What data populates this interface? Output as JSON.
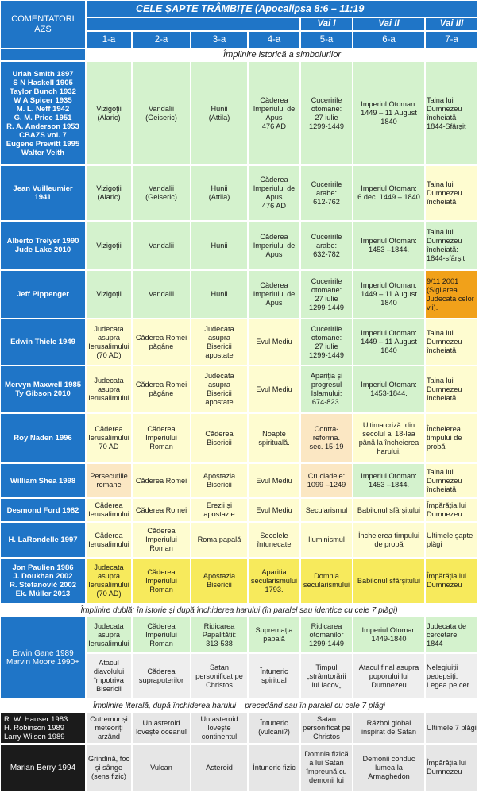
{
  "header": {
    "commentators_label": "COMENTATORI\nAZS",
    "title": "CELE ȘAPTE TRÂMBIȚE (Apocalipsa 8:6 – 11:19",
    "vai": [
      "Vai I",
      "Vai II",
      "Vai III"
    ],
    "columns": [
      "1-a",
      "2-a",
      "3-a",
      "4-a",
      "5-a",
      "6-a",
      "7-a"
    ]
  },
  "sections": {
    "historical": "Împlinire istorică a simbolurilor",
    "dual": "Împlinire dublă: în istorie și după închiderea harului  (în paralel sau identice cu cele 7 plăgi)",
    "literal": "Împlinire literală, după închiderea harului – precedând sau în paralel cu cele 7 plăgi"
  },
  "rows": [
    {
      "commentators": "Uriah Smith 1897\nS N Haskell 1905\nTaylor Bunch 1932\nW A Spicer 1935\nM. L. Neff 1942\nG. M. Price 1951\nR. A. Anderson 1953\nCBAZS vol. 7\nEugene Prewitt 1995\nWalter Veith",
      "cells": [
        "Vizigoții\n(Alaric)",
        "Vandalii\n(Geiseric)",
        "Hunii\n(Attila)",
        "Căderea\nImperiului de\nApus\n476 AD",
        "Cuceririle\notomane:\n27 iulie\n1299-1449",
        "Imperiul Otoman:\n1449 – 11 August\n1840",
        "Taina lui\nDumnezeu\nîncheiată\n1844-Sfârșit"
      ]
    },
    {
      "commentators": "Jean Vuilleumier\n1941",
      "cells": [
        "Vizigoții\n(Alaric)",
        "Vandalii\n(Geiseric)",
        "Hunii\n(Attila)",
        "Căderea\nImperiului de\nApus\n476 AD",
        "Cuceririle\narabe:\n612-762",
        "Imperiul Otoman:\n6 dec. 1449 – 1840",
        "Taina lui\nDumnezeu\nîncheiată"
      ]
    },
    {
      "commentators": "Alberto  Treiyer 1990\nJude Lake 2010",
      "cells": [
        "Vizigoții",
        "Vandalii",
        "Hunii",
        "Căderea\nImperiului de\nApus",
        "Cuceririle\narabe:\n632-782",
        "Imperiul Otoman:\n1453 –1844.",
        "Taina lui\nDumnezeu\nîncheiată:\n1844-sfârșit"
      ]
    },
    {
      "commentators": "Jeff Pippenger",
      "cells": [
        "Vizigoții",
        "Vandalii",
        "Hunii",
        "Căderea\nImperiului de\nApus",
        "Cuceririle\notomane:\n27 iulie\n1299-1449",
        "Imperiul Otoman:\n1449 – 11 August\n1840",
        "9/11 2001\n(Sigilarea.\nJudecata celor\nvii)."
      ]
    },
    {
      "commentators": "Edwin Thiele 1949",
      "cells": [
        "Judecata\nasupra\nIerusalimului\n(70 AD)",
        "Căderea Romei\npăgâne",
        "Judecata\nasupra\nBisericii\napostate",
        "Evul Mediu",
        "Cuceririle\notomane:\n27 iulie\n1299-1449",
        "Imperiul Otoman:\n1449 – 11 August\n1840",
        "Taina lui\nDumnezeu\nîncheiată"
      ]
    },
    {
      "commentators": "Mervyn Maxwell 1985\nTy Gibson 2010",
      "cells": [
        "Judecata\nasupra\nIerusalimului",
        "Căderea Romei\npăgâne",
        "Judecata\nasupra\nBisericii\napostate",
        "Evul Mediu",
        "Apariția și\nprogresul\nIslamului:\n674-823.",
        "Imperiul Otoman:\n1453-1844.",
        "Taina lui\nDumnezeu\nîncheiată"
      ]
    },
    {
      "commentators": "Roy Naden 1996",
      "cells": [
        "Căderea\nIerusalimului\n70 AD",
        "Căderea\nImperiului\nRoman",
        "Căderea\nBisericii",
        "Noapte\nspirituală.",
        "Contra-\nreforma.\nsec. 15-19",
        "Ultima criză: din\nsecolul al 18-lea\npână la încheierea\nharului.",
        "Încheierea\ntimpului de\nprobă"
      ]
    },
    {
      "commentators": "William Shea 1998",
      "cells": [
        "Persecuțiile\nromane",
        "Căderea Romei",
        "Apostazia\nBisericii",
        "Evul Mediu",
        "Cruciadele:\n1099 –1249",
        "Imperiul Otoman:\n1453 –1844.",
        "Taina lui\nDumnezeu\nîncheiată"
      ]
    },
    {
      "commentators": "Desmond Ford 1982",
      "cells": [
        "Căderea\nIerusalimului",
        "Căderea Romei",
        "Erezii și\napostazie",
        "Evul Mediu",
        "Secularismul",
        "Babilonul sfârșitului",
        "Împărăția lui\nDumnezeu"
      ]
    },
    {
      "commentators": "H. LaRondelle 1997",
      "cells": [
        "Căderea\nIerusalimului",
        "Căderea\nImperiului\nRoman",
        "Roma papală",
        "Secolele\nîntunecate",
        "Iluminismul",
        "Încheierea timpului\nde probă",
        "Ultimele șapte\nplăgi"
      ]
    },
    {
      "commentators": "Jon Paulien 1986\nJ. Doukhan 2002\nR. Stefanović 2002\nEk. Müller 2013",
      "cells": [
        "Judecata\nasupra\nIerusalimului\n(70 AD)",
        "Căderea\nImperiului\nRoman",
        "Apostazia\nBisericii",
        "Apariția\nsecularismului\n1793.",
        "Domnia\nsecularismului",
        "Babilonul sfârșitului",
        "Împărăția lui\nDumnezeu"
      ]
    }
  ],
  "dual_row": {
    "commentators": "Erwin Gane 1989\nMarvin Moore 1990+",
    "history": [
      "Judecata\nasupra\nIerusalimului",
      "Căderea\nImperiului\nRoman",
      "Ridicarea\nPapalității:\n313-538",
      "Supremația\npapală",
      "Ridicarea\notomanilor\n1299-1449",
      "Imperiul Otoman\n1449-1840",
      "Judecata de\ncercetare:\n1844"
    ],
    "future": [
      "Atacul\ndiavolului\nîmpotriva\nBisericii",
      "Căderea\nsupraputerilor",
      "Satan\npersonificat pe\nChristos",
      "Întuneric\nspiritual",
      "Timpul\n„strâmtorării\nlui Iacov„",
      "Atacul final asupra\npoporului lui\nDumnezeu",
      "Nelegiuiții\npedepsiți.\nLegea pe cer"
    ]
  },
  "literal_rows": [
    {
      "commentators": "R. W. Hauser 1983\nH. Robinson 1989\nLarry Wilson 1989",
      "cells": [
        "Cutremur și\nmeteoriți\narzând",
        "Un asteroid\nlovește oceanul",
        "Un asteroid\nlovește\ncontinentul",
        "Întuneric\n(vulcani?)",
        "Satan\npersonificat pe\nChristos",
        "Război global\ninspirat de Satan",
        "Ultimele 7 plăgi"
      ]
    },
    {
      "commentators": "Marian Berry 1994",
      "cells": [
        "Grindină, foc\nși sânge\n(sens fizic)",
        "Vulcan",
        "Asteroid",
        "Întuneric fizic",
        "Domnia fizică\na lui Satan\nîmpreună cu\ndemonii lui",
        "Demonii conduc\nlumea la\nArmaghedon",
        "Împărăția lui\nDumnezeu"
      ]
    }
  ],
  "colors": {
    "header_blue": "#1f75c7",
    "green": "#d4f2cd",
    "light_yellow": "#fefcd0",
    "beige": "#fbe7c3",
    "strong_yellow": "#f7ea5c",
    "orange": "#f1a11a",
    "gray": "#e6e6e6",
    "dark": "#1b1b1b"
  }
}
